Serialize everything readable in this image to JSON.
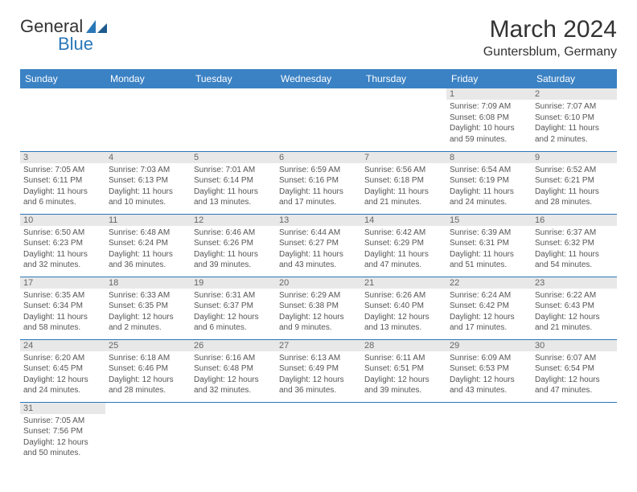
{
  "logo": {
    "general": "General",
    "blue": "Blue"
  },
  "title": "March 2024",
  "location": "Guntersblum, Germany",
  "colors": {
    "header_bg": "#3b82c4",
    "header_text": "#ffffff",
    "daynum_bg": "#e8e8e8",
    "row_border": "#2a77b8",
    "text": "#555555"
  },
  "weekdays": [
    "Sunday",
    "Monday",
    "Tuesday",
    "Wednesday",
    "Thursday",
    "Friday",
    "Saturday"
  ],
  "weeks": [
    [
      null,
      null,
      null,
      null,
      null,
      {
        "n": "1",
        "sr": "Sunrise: 7:09 AM",
        "ss": "Sunset: 6:08 PM",
        "d1": "Daylight: 10 hours",
        "d2": "and 59 minutes."
      },
      {
        "n": "2",
        "sr": "Sunrise: 7:07 AM",
        "ss": "Sunset: 6:10 PM",
        "d1": "Daylight: 11 hours",
        "d2": "and 2 minutes."
      }
    ],
    [
      {
        "n": "3",
        "sr": "Sunrise: 7:05 AM",
        "ss": "Sunset: 6:11 PM",
        "d1": "Daylight: 11 hours",
        "d2": "and 6 minutes."
      },
      {
        "n": "4",
        "sr": "Sunrise: 7:03 AM",
        "ss": "Sunset: 6:13 PM",
        "d1": "Daylight: 11 hours",
        "d2": "and 10 minutes."
      },
      {
        "n": "5",
        "sr": "Sunrise: 7:01 AM",
        "ss": "Sunset: 6:14 PM",
        "d1": "Daylight: 11 hours",
        "d2": "and 13 minutes."
      },
      {
        "n": "6",
        "sr": "Sunrise: 6:59 AM",
        "ss": "Sunset: 6:16 PM",
        "d1": "Daylight: 11 hours",
        "d2": "and 17 minutes."
      },
      {
        "n": "7",
        "sr": "Sunrise: 6:56 AM",
        "ss": "Sunset: 6:18 PM",
        "d1": "Daylight: 11 hours",
        "d2": "and 21 minutes."
      },
      {
        "n": "8",
        "sr": "Sunrise: 6:54 AM",
        "ss": "Sunset: 6:19 PM",
        "d1": "Daylight: 11 hours",
        "d2": "and 24 minutes."
      },
      {
        "n": "9",
        "sr": "Sunrise: 6:52 AM",
        "ss": "Sunset: 6:21 PM",
        "d1": "Daylight: 11 hours",
        "d2": "and 28 minutes."
      }
    ],
    [
      {
        "n": "10",
        "sr": "Sunrise: 6:50 AM",
        "ss": "Sunset: 6:23 PM",
        "d1": "Daylight: 11 hours",
        "d2": "and 32 minutes."
      },
      {
        "n": "11",
        "sr": "Sunrise: 6:48 AM",
        "ss": "Sunset: 6:24 PM",
        "d1": "Daylight: 11 hours",
        "d2": "and 36 minutes."
      },
      {
        "n": "12",
        "sr": "Sunrise: 6:46 AM",
        "ss": "Sunset: 6:26 PM",
        "d1": "Daylight: 11 hours",
        "d2": "and 39 minutes."
      },
      {
        "n": "13",
        "sr": "Sunrise: 6:44 AM",
        "ss": "Sunset: 6:27 PM",
        "d1": "Daylight: 11 hours",
        "d2": "and 43 minutes."
      },
      {
        "n": "14",
        "sr": "Sunrise: 6:42 AM",
        "ss": "Sunset: 6:29 PM",
        "d1": "Daylight: 11 hours",
        "d2": "and 47 minutes."
      },
      {
        "n": "15",
        "sr": "Sunrise: 6:39 AM",
        "ss": "Sunset: 6:31 PM",
        "d1": "Daylight: 11 hours",
        "d2": "and 51 minutes."
      },
      {
        "n": "16",
        "sr": "Sunrise: 6:37 AM",
        "ss": "Sunset: 6:32 PM",
        "d1": "Daylight: 11 hours",
        "d2": "and 54 minutes."
      }
    ],
    [
      {
        "n": "17",
        "sr": "Sunrise: 6:35 AM",
        "ss": "Sunset: 6:34 PM",
        "d1": "Daylight: 11 hours",
        "d2": "and 58 minutes."
      },
      {
        "n": "18",
        "sr": "Sunrise: 6:33 AM",
        "ss": "Sunset: 6:35 PM",
        "d1": "Daylight: 12 hours",
        "d2": "and 2 minutes."
      },
      {
        "n": "19",
        "sr": "Sunrise: 6:31 AM",
        "ss": "Sunset: 6:37 PM",
        "d1": "Daylight: 12 hours",
        "d2": "and 6 minutes."
      },
      {
        "n": "20",
        "sr": "Sunrise: 6:29 AM",
        "ss": "Sunset: 6:38 PM",
        "d1": "Daylight: 12 hours",
        "d2": "and 9 minutes."
      },
      {
        "n": "21",
        "sr": "Sunrise: 6:26 AM",
        "ss": "Sunset: 6:40 PM",
        "d1": "Daylight: 12 hours",
        "d2": "and 13 minutes."
      },
      {
        "n": "22",
        "sr": "Sunrise: 6:24 AM",
        "ss": "Sunset: 6:42 PM",
        "d1": "Daylight: 12 hours",
        "d2": "and 17 minutes."
      },
      {
        "n": "23",
        "sr": "Sunrise: 6:22 AM",
        "ss": "Sunset: 6:43 PM",
        "d1": "Daylight: 12 hours",
        "d2": "and 21 minutes."
      }
    ],
    [
      {
        "n": "24",
        "sr": "Sunrise: 6:20 AM",
        "ss": "Sunset: 6:45 PM",
        "d1": "Daylight: 12 hours",
        "d2": "and 24 minutes."
      },
      {
        "n": "25",
        "sr": "Sunrise: 6:18 AM",
        "ss": "Sunset: 6:46 PM",
        "d1": "Daylight: 12 hours",
        "d2": "and 28 minutes."
      },
      {
        "n": "26",
        "sr": "Sunrise: 6:16 AM",
        "ss": "Sunset: 6:48 PM",
        "d1": "Daylight: 12 hours",
        "d2": "and 32 minutes."
      },
      {
        "n": "27",
        "sr": "Sunrise: 6:13 AM",
        "ss": "Sunset: 6:49 PM",
        "d1": "Daylight: 12 hours",
        "d2": "and 36 minutes."
      },
      {
        "n": "28",
        "sr": "Sunrise: 6:11 AM",
        "ss": "Sunset: 6:51 PM",
        "d1": "Daylight: 12 hours",
        "d2": "and 39 minutes."
      },
      {
        "n": "29",
        "sr": "Sunrise: 6:09 AM",
        "ss": "Sunset: 6:53 PM",
        "d1": "Daylight: 12 hours",
        "d2": "and 43 minutes."
      },
      {
        "n": "30",
        "sr": "Sunrise: 6:07 AM",
        "ss": "Sunset: 6:54 PM",
        "d1": "Daylight: 12 hours",
        "d2": "and 47 minutes."
      }
    ],
    [
      {
        "n": "31",
        "sr": "Sunrise: 7:05 AM",
        "ss": "Sunset: 7:56 PM",
        "d1": "Daylight: 12 hours",
        "d2": "and 50 minutes."
      },
      null,
      null,
      null,
      null,
      null,
      null
    ]
  ]
}
